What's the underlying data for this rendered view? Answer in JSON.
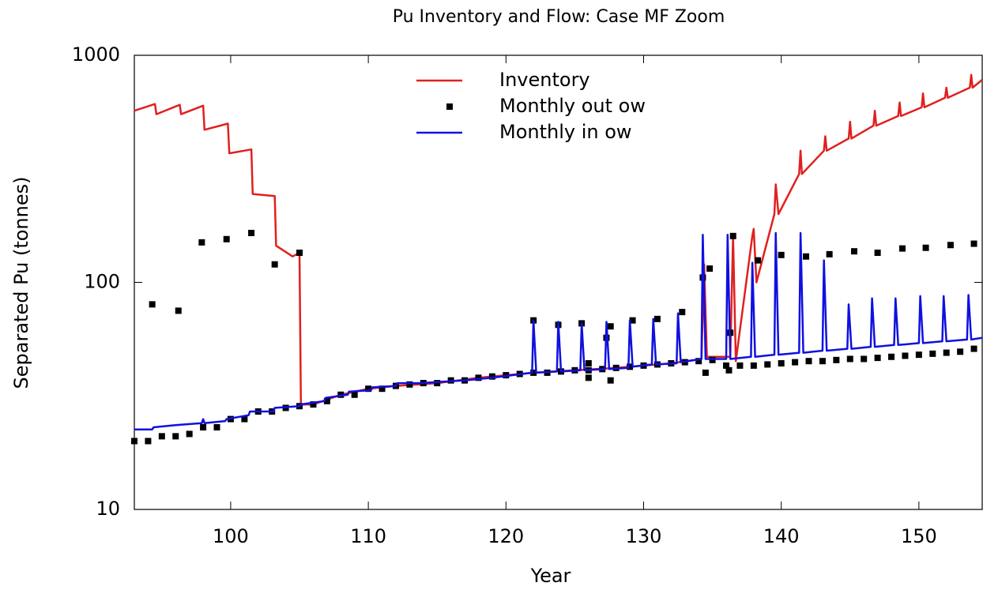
{
  "chart_data": {
    "type": "line",
    "title": "Pu Inventory and Flow: Case MF Zoom",
    "x_label": "Year",
    "y_label": "Separated Pu (tonnes)",
    "xlim": [
      93,
      154.6
    ],
    "xticks": [
      100,
      110,
      120,
      130,
      140,
      150
    ],
    "ylim": [
      10,
      1000
    ],
    "yticks": [
      10,
      100,
      1000
    ],
    "log_y": true,
    "legend": "upper center",
    "series": [
      {
        "name": "Inventory",
        "color": "#e02020",
        "marker": false,
        "x": [
          93,
          94.5,
          94.6,
          96.3,
          96.4,
          98,
          98.1,
          99.8,
          99.9,
          101.5,
          101.6,
          103.2,
          103.3,
          104.5,
          105,
          105.1,
          106,
          108,
          110,
          112,
          115,
          118,
          120,
          122,
          125,
          128,
          130,
          132,
          134.2,
          134.4,
          134.6,
          136.3,
          136.5,
          136.7,
          137.9,
          138,
          138.2,
          139.5,
          139.6,
          139.8,
          141.3,
          141.4,
          141.5,
          143.1,
          143.2,
          143.3,
          144.9,
          145,
          145.1,
          146.7,
          146.8,
          146.9,
          148.5,
          148.6,
          148.7,
          150.2,
          150.3,
          150.4,
          151.9,
          152,
          152.1,
          153.7,
          153.8,
          153.9,
          154.6
        ],
        "values": [
          570,
          610,
          550,
          605,
          550,
          600,
          470,
          500,
          370,
          385,
          245,
          240,
          145,
          130,
          135,
          29,
          29,
          32,
          34,
          35,
          36,
          38,
          39,
          40,
          41,
          42,
          43,
          44,
          46,
          120,
          47,
          47,
          160,
          45,
          160,
          172,
          100,
          200,
          270,
          200,
          300,
          380,
          300,
          380,
          440,
          380,
          430,
          510,
          430,
          490,
          570,
          490,
          540,
          620,
          540,
          590,
          680,
          590,
          650,
          720,
          650,
          720,
          820,
          720,
          780
        ]
      },
      {
        "name": "Monthly out  ow",
        "color": "#000000",
        "marker": true,
        "x": [
          94.3,
          96.2,
          97.9,
          99.7,
          101.5,
          103.2,
          105,
          122,
          123.8,
          125.5,
          126,
          126,
          127.3,
          127.6,
          127.6,
          129.2,
          131,
          132.8,
          134.3,
          134.5,
          134.8,
          136.2,
          136.3,
          136.5,
          138.3,
          140,
          141.8,
          143.5,
          145.3,
          147,
          148.8,
          150.5,
          152.3,
          154,
          93,
          94,
          95,
          96,
          97,
          98,
          99,
          100,
          101,
          102,
          103,
          104,
          105,
          106,
          107,
          108,
          109,
          110,
          111,
          112,
          113,
          114,
          115,
          116,
          117,
          118,
          119,
          120,
          121,
          122,
          123,
          124,
          125,
          126,
          127,
          128,
          129,
          130,
          131,
          132,
          133,
          134,
          135,
          136,
          137,
          138,
          139,
          140,
          141,
          142,
          143,
          144,
          145,
          146,
          147,
          148,
          149,
          150,
          151,
          152,
          153,
          154
        ],
        "values": [
          80,
          75,
          150,
          155,
          165,
          120,
          135,
          68,
          65,
          66,
          38,
          44,
          57,
          37,
          64,
          68,
          69,
          74,
          105,
          40,
          115,
          41,
          60,
          160,
          125,
          132,
          130,
          133,
          137,
          135,
          141,
          142,
          146,
          148,
          20,
          20,
          21,
          21,
          21.5,
          23,
          23,
          25,
          25,
          27,
          27,
          28,
          28.5,
          29,
          30,
          32,
          32,
          34,
          34,
          35,
          35.5,
          36,
          36,
          37,
          37,
          38,
          38.5,
          39,
          39.5,
          40,
          40,
          40.5,
          41,
          41,
          41.5,
          42,
          42.5,
          43,
          43.5,
          44,
          44.5,
          45,
          45.5,
          43,
          43,
          43,
          43.5,
          44,
          44.5,
          45,
          45,
          45.5,
          46,
          46,
          46.5,
          47,
          47.5,
          48,
          48.5,
          49,
          49.5,
          51
        ]
      },
      {
        "name": "Monthly in  ow",
        "color": "#1010e0",
        "marker": false,
        "x": [
          93,
          94.3,
          94.4,
          96,
          97.9,
          98,
          98.1,
          99.6,
          99.7,
          101.3,
          101.4,
          103.1,
          103.2,
          105,
          105.1,
          106.8,
          106.9,
          108.5,
          108.6,
          110.2,
          110.3,
          112,
          112.1,
          113.7,
          115.4,
          117,
          119,
          121.9,
          122,
          122.2,
          123.7,
          123.8,
          124,
          125.4,
          125.5,
          125.7,
          127.2,
          127.3,
          127.5,
          128.9,
          129,
          129.2,
          130.6,
          130.7,
          130.9,
          132.4,
          132.5,
          132.7,
          134.2,
          134.3,
          134.5,
          136,
          136.1,
          136.3,
          137.8,
          137.9,
          138.1,
          139.5,
          139.6,
          139.8,
          141.3,
          141.4,
          141.6,
          143,
          143.1,
          143.3,
          144.8,
          144.9,
          145.1,
          146.5,
          146.6,
          146.8,
          148.2,
          148.3,
          148.5,
          150,
          150.1,
          150.3,
          151.7,
          151.8,
          152,
          153.5,
          153.6,
          153.8,
          154.6
        ],
        "values": [
          22.5,
          22.5,
          23,
          23.5,
          24,
          25,
          24,
          24.5,
          25,
          26,
          27,
          27,
          28,
          28.5,
          29,
          30,
          31,
          32,
          33,
          33.5,
          34.5,
          35,
          36,
          36,
          36.5,
          37,
          38,
          40,
          68,
          40,
          40.5,
          67,
          40.5,
          41,
          66,
          41,
          41.5,
          67,
          41.5,
          42,
          68,
          42.5,
          43.5,
          69,
          43.5,
          44,
          73,
          44.5,
          46,
          162,
          46,
          46,
          162,
          46,
          47,
          122,
          47,
          48,
          165,
          48,
          49,
          165,
          49,
          50,
          125,
          50,
          51,
          80,
          51,
          52,
          85,
          52,
          53,
          85,
          53,
          54,
          87,
          54,
          55,
          87,
          55,
          56,
          88,
          56,
          57
        ]
      }
    ]
  }
}
